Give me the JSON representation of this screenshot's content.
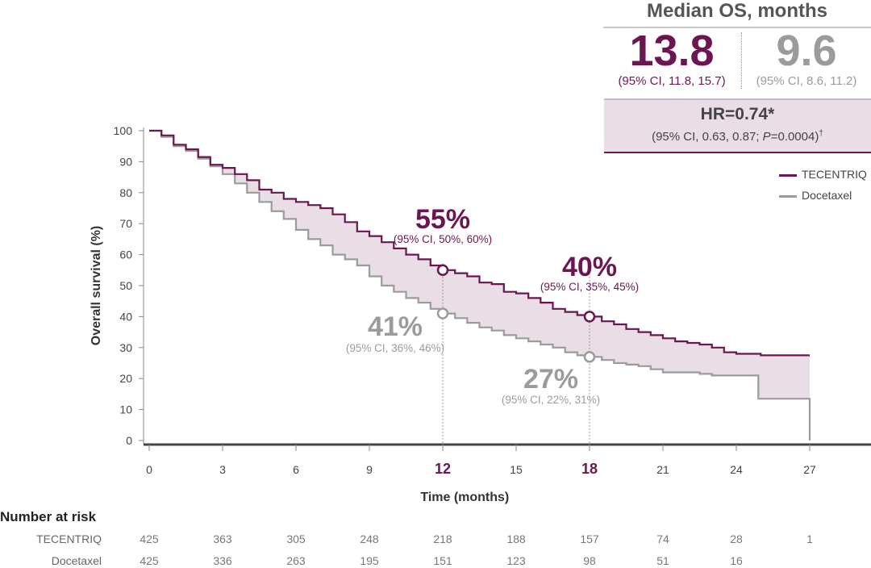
{
  "median": {
    "title": "Median OS, months",
    "tecentriq_value": "13.8",
    "tecentriq_ci": "(95% CI, 11.8, 15.7)",
    "docetaxel_value": "9.6",
    "docetaxel_ci": "(95% CI, 8.6, 11.2)"
  },
  "hazard": {
    "main": "HR=0.74*",
    "ci_prefix": "(95% CI, 0.63, 0.87; ",
    "p_italic": "P",
    "ci_suffix": "=0.0004)",
    "dagger": "†"
  },
  "legend": {
    "tecentriq": "TECENTRIQ",
    "docetaxel": "Docetaxel"
  },
  "colors": {
    "tecentriq": "#6b1650",
    "docetaxel": "#9b9b9b",
    "shade": "#e9dde6"
  },
  "risk_table": {
    "title": "Number at risk",
    "rows": [
      {
        "label": "TECENTRIQ",
        "values": [
          "425",
          "363",
          "305",
          "248",
          "218",
          "188",
          "157",
          "74",
          "28",
          "1"
        ]
      },
      {
        "label": "Docetaxel",
        "values": [
          "425",
          "336",
          "263",
          "195",
          "151",
          "123",
          "98",
          "51",
          "16",
          ""
        ]
      }
    ]
  },
  "chart_data": {
    "type": "line",
    "title": "",
    "xlabel": "Time (months)",
    "ylabel": "Overall survival (%)",
    "xlim": [
      0,
      27
    ],
    "ylim": [
      0,
      100
    ],
    "xticks": [
      0,
      3,
      6,
      9,
      12,
      15,
      18,
      21,
      24,
      27
    ],
    "yticks": [
      0,
      10,
      20,
      30,
      40,
      50,
      60,
      70,
      80,
      90,
      100
    ],
    "highlight_ticks": [
      12,
      18
    ],
    "grid": false,
    "series": [
      {
        "name": "TECENTRIQ",
        "color": "#6b1650",
        "step": true,
        "x": [
          0,
          0.5,
          1,
          1.5,
          2,
          2.5,
          3,
          3.5,
          4,
          4.5,
          5,
          5.5,
          6,
          6.5,
          7,
          7.5,
          8,
          8.5,
          9,
          9.5,
          10,
          10.5,
          11,
          11.5,
          12,
          12.5,
          13,
          13.5,
          14,
          14.5,
          15,
          15.5,
          16,
          16.5,
          17,
          17.5,
          18,
          18.5,
          19,
          19.5,
          20,
          20.5,
          21,
          21.5,
          22,
          22.5,
          23,
          23.5,
          24,
          24.5,
          25,
          25.5,
          26,
          26.5,
          27
        ],
        "y": [
          100,
          98.5,
          95.5,
          94,
          91.5,
          89,
          88,
          86,
          84,
          81,
          80,
          78,
          77,
          76,
          75,
          73,
          70.5,
          67.5,
          66,
          64,
          62,
          60,
          58.5,
          56.5,
          55,
          54,
          53,
          51,
          50.5,
          48,
          47.5,
          46,
          44.5,
          42.5,
          41.5,
          40.5,
          40,
          38.5,
          37.5,
          36,
          35,
          34,
          33,
          32,
          31.5,
          31,
          30,
          28.5,
          28,
          28,
          27.5,
          27.5,
          27.5,
          27.5,
          27.5
        ]
      },
      {
        "name": "Docetaxel",
        "color": "#9b9b9b",
        "step": true,
        "x": [
          0,
          0.5,
          1,
          1.5,
          2,
          2.5,
          3,
          3.5,
          4,
          4.5,
          5,
          5.5,
          6,
          6.5,
          7,
          7.5,
          8,
          8.5,
          9,
          9.5,
          10,
          10.5,
          11,
          11.5,
          12,
          12.5,
          13,
          13.5,
          14,
          14.5,
          15,
          15.5,
          16,
          16.5,
          17,
          17.5,
          18,
          18.5,
          19,
          19.5,
          20,
          20.5,
          21,
          21.5,
          22,
          22.5,
          23,
          23.5,
          24,
          24.5,
          24.9,
          25.5,
          26,
          26.5,
          27
        ],
        "y": [
          100,
          98,
          95,
          93.5,
          91,
          88.5,
          86,
          83,
          80,
          77,
          74,
          71.5,
          68,
          65,
          63,
          60,
          58.5,
          56.5,
          53,
          50,
          48,
          46,
          44.5,
          42.5,
          41,
          39.5,
          38,
          36.5,
          35.5,
          34,
          33,
          32,
          31,
          30,
          28.5,
          27.5,
          27,
          26,
          25,
          24.5,
          24,
          23,
          22,
          22,
          22,
          21.5,
          21,
          21,
          21,
          21,
          13.5,
          13.5,
          13.5,
          13.5,
          0
        ]
      }
    ],
    "annotations": [
      {
        "series": "TECENTRIQ",
        "x": 12,
        "y": 55,
        "value": "55%",
        "ci": "(95% CI, 50%, 60%)"
      },
      {
        "series": "Docetaxel",
        "x": 12,
        "y": 41,
        "value": "41%",
        "ci": "(95% CI, 36%, 46%)"
      },
      {
        "series": "TECENTRIQ",
        "x": 18,
        "y": 40,
        "value": "40%",
        "ci": "(95% CI, 35%, 45%)"
      },
      {
        "series": "Docetaxel",
        "x": 18,
        "y": 27,
        "value": "27%",
        "ci": "(95% CI, 22%, 31%)"
      }
    ],
    "legend_position": "top-right"
  }
}
